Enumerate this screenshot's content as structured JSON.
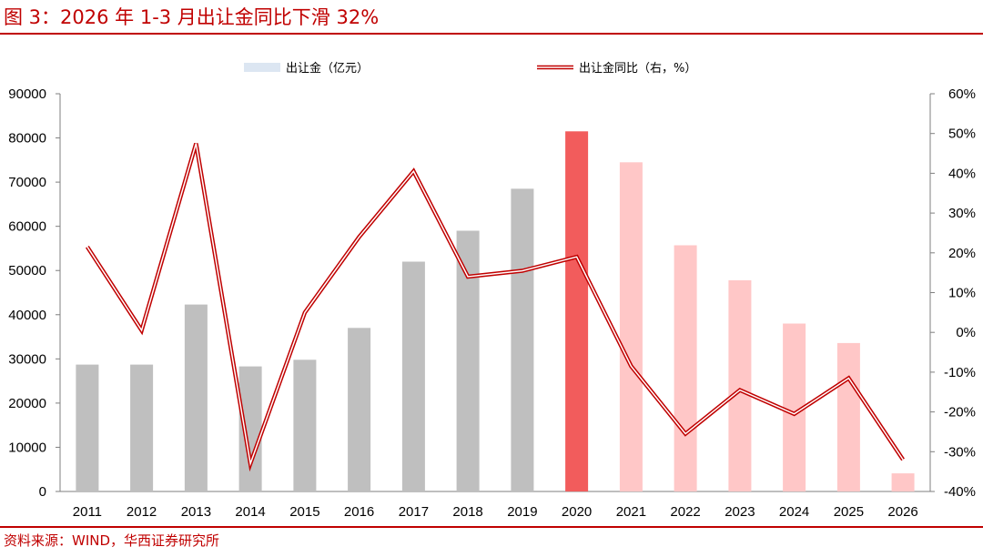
{
  "figure": {
    "title": "图 3：2026 年 1-3 月出让金同比下滑 32%",
    "source": "资料来源：WIND，华西证券研究所"
  },
  "colors": {
    "accent": "#c00000",
    "bar_gray": "#bfbfbf",
    "bar_highlight": "#f25c5c",
    "bar_light": "#ffc7c7",
    "legend_bar": "#dce6f2",
    "line": "#c00000"
  },
  "chart_data": {
    "type": "bar",
    "categories": [
      "2011",
      "2012",
      "2013",
      "2014",
      "2015",
      "2016",
      "2017",
      "2018",
      "2019",
      "2020",
      "2021",
      "2022",
      "2023",
      "2024",
      "2025",
      "2026"
    ],
    "series": [
      {
        "name": "出让金（亿元）",
        "type": "bar",
        "axis": "left",
        "values": [
          28700,
          28700,
          42300,
          28300,
          29800,
          37000,
          52000,
          59000,
          68500,
          81500,
          74500,
          55700,
          47800,
          38000,
          33600,
          4100
        ]
      },
      {
        "name": "出让金同比（右，%）",
        "type": "line",
        "axis": "right",
        "values": [
          21.5,
          0.5,
          47.5,
          -33,
          5,
          24,
          40.5,
          14,
          15.5,
          19,
          -8.5,
          -25.5,
          -14.5,
          -20.5,
          -11.5,
          -32
        ]
      }
    ],
    "y_left": {
      "min": 0,
      "max": 90000,
      "ticks": [
        "0",
        "10000",
        "20000",
        "30000",
        "40000",
        "50000",
        "60000",
        "70000",
        "80000",
        "90000"
      ]
    },
    "y_right": {
      "min": -40,
      "max": 60,
      "ticks": [
        "-40%",
        "-30%",
        "-20%",
        "-10%",
        "0%",
        "10%",
        "20%",
        "30%",
        "40%",
        "50%",
        "60%"
      ]
    },
    "legend_position": "top",
    "grid": false
  }
}
